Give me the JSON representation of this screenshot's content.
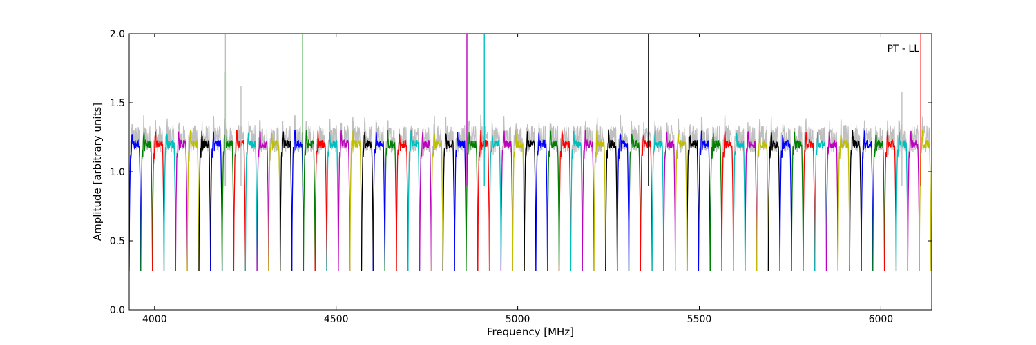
{
  "chart_data": {
    "type": "line",
    "title": "",
    "xlabel": "Frequency [MHz]",
    "ylabel": "Amplitude [arbitrary units]",
    "annotation": "PT - LL",
    "xlim": [
      3930,
      6140
    ],
    "ylim": [
      0.0,
      2.0
    ],
    "xticks": [
      4000,
      4500,
      5000,
      5500,
      6000
    ],
    "yticks": [
      0.0,
      0.5,
      1.0,
      1.5,
      2.0
    ],
    "ytick_labels": [
      "0.0",
      "0.5",
      "1.0",
      "1.5",
      "2.0"
    ],
    "grid": false,
    "background_trace_color": "#bfbfbf",
    "channel_colors": [
      "#0000ff",
      "#008000",
      "#ff0000",
      "#00bfbf",
      "#bf00bf",
      "#bfbf00",
      "#000000"
    ],
    "channel_starts_mhz": [
      3930,
      3962,
      3994,
      4026,
      4058,
      4090,
      4122,
      4154,
      4186,
      4218,
      4250,
      4282,
      4314,
      4346,
      4378,
      4410,
      4442,
      4474,
      4506,
      4538,
      4570,
      4602,
      4634,
      4666,
      4698,
      4730,
      4762,
      4794,
      4826,
      4858,
      4890,
      4922,
      4954,
      4986,
      5018,
      5050,
      5082,
      5114,
      5146,
      5178,
      5210,
      5242,
      5274,
      5306,
      5338,
      5370,
      5402,
      5434,
      5466,
      5498,
      5530,
      5562,
      5594,
      5626,
      5658,
      5690,
      5722,
      5754,
      5786,
      5818,
      5850,
      5882,
      5914,
      5946,
      5978,
      6010,
      6042,
      6074,
      6106
    ],
    "channel_width_mhz": 32,
    "typical_plateau": 1.2,
    "typical_dip_minimum": 0.28,
    "spikes": [
      {
        "x": 4195,
        "y": 1.72,
        "color": "#008000"
      },
      {
        "x": 4195,
        "y": 2.0,
        "color": "#bfbfbf"
      },
      {
        "x": 4238,
        "y": 1.62,
        "color": "#bfbfbf"
      },
      {
        "x": 4408,
        "y": 2.0,
        "color": "#008000"
      },
      {
        "x": 4860,
        "y": 2.0,
        "color": "#bf00bf"
      },
      {
        "x": 4908,
        "y": 2.0,
        "color": "#00bfbf"
      },
      {
        "x": 5360,
        "y": 2.0,
        "color": "#000000"
      },
      {
        "x": 6110,
        "y": 2.0,
        "color": "#ff0000"
      },
      {
        "x": 6058,
        "y": 1.58,
        "color": "#bfbfbf"
      }
    ]
  }
}
